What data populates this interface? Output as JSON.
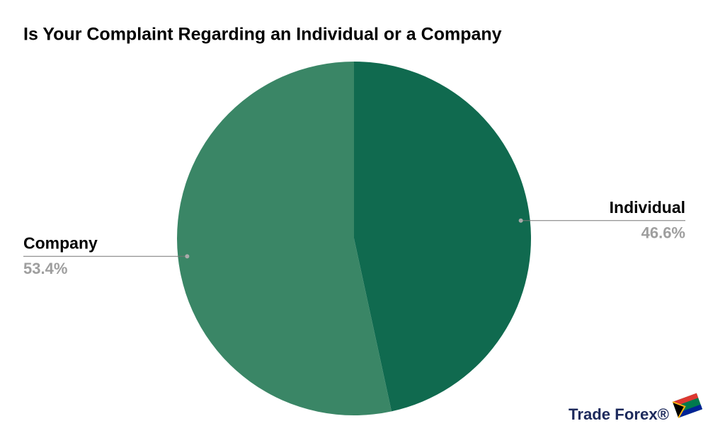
{
  "chart_data": {
    "type": "pie",
    "title": "Is Your Complaint Regarding an Individual or a Company",
    "categories": [
      "Individual",
      "Company"
    ],
    "values": [
      46.6,
      53.4
    ],
    "value_labels": [
      "46.6%",
      "53.4%"
    ],
    "colors": [
      "#106a4f",
      "#3a8666"
    ],
    "logo": "Trade Forex®"
  }
}
